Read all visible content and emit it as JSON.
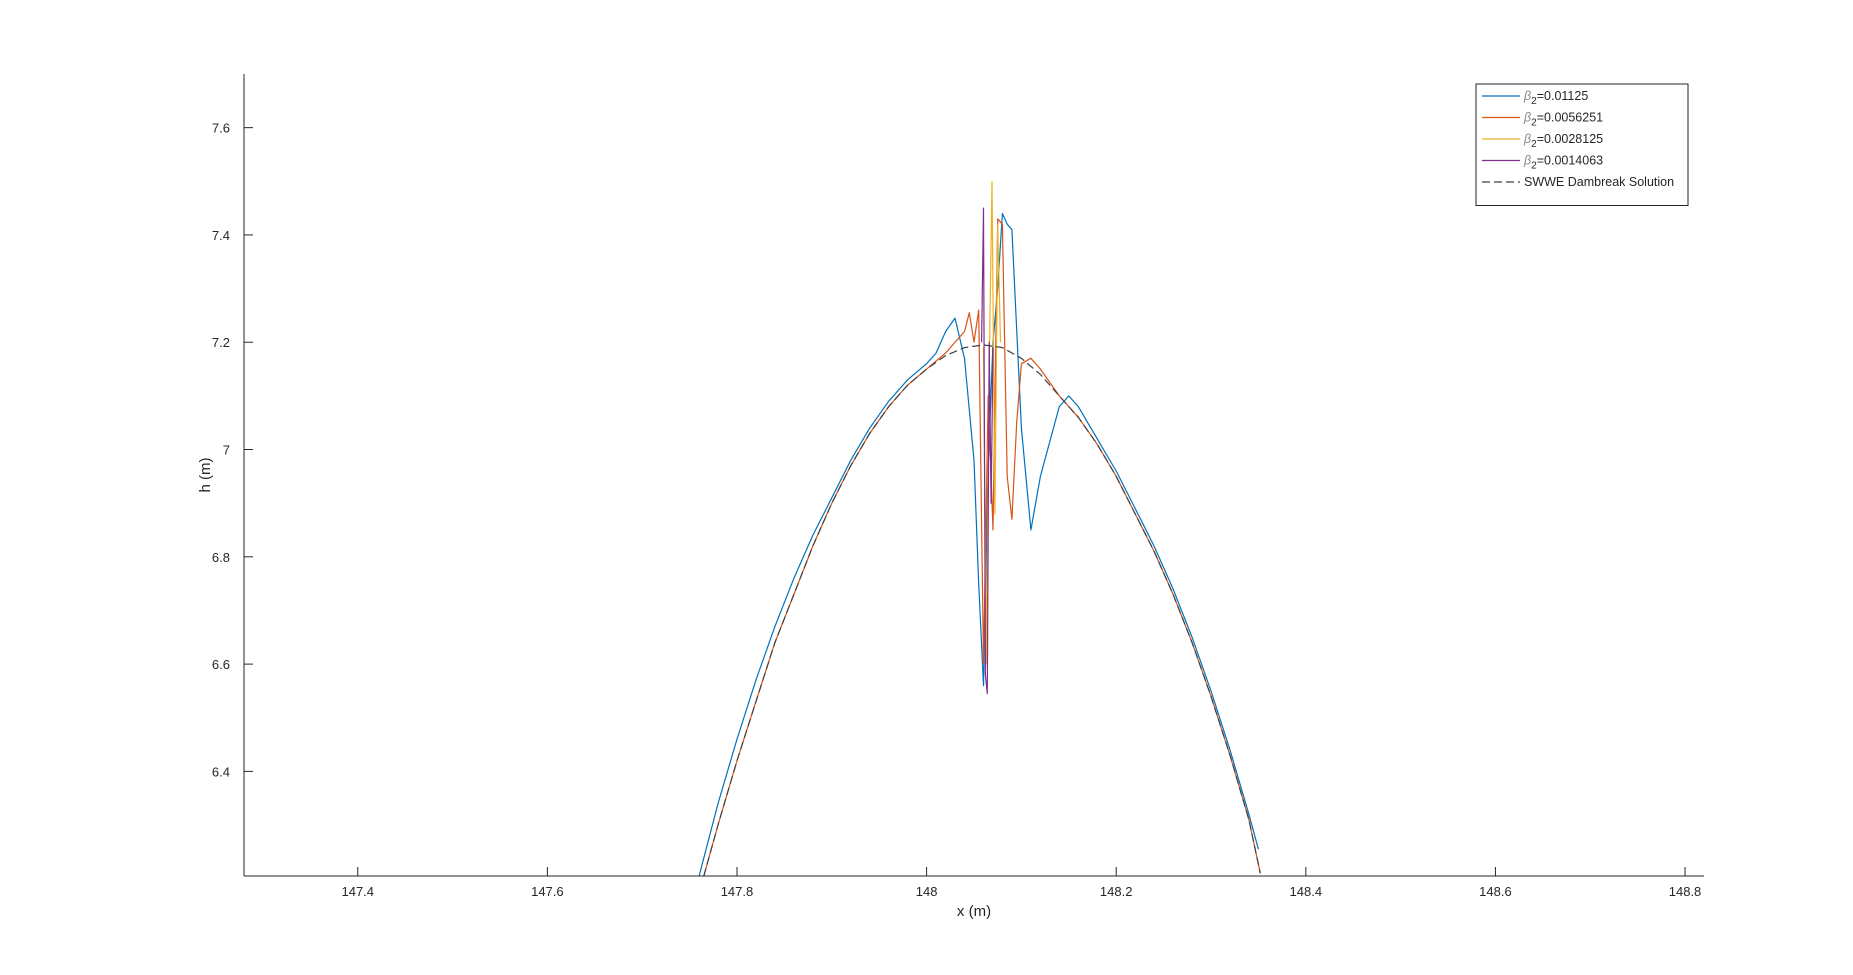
{
  "chart_data": {
    "type": "line",
    "title": "",
    "xlabel": "x (m)",
    "ylabel": "h (m)",
    "xlim": [
      147.28,
      148.82
    ],
    "ylim": [
      6.205,
      7.7
    ],
    "xticks": [
      147.4,
      147.6,
      147.8,
      148,
      148.2,
      148.4,
      148.6,
      148.8
    ],
    "xtick_labels": [
      "147.4",
      "147.6",
      "147.8",
      "148",
      "148.2",
      "148.4",
      "148.6",
      "148.8"
    ],
    "yticks": [
      6.4,
      6.6,
      6.8,
      7,
      7.2,
      7.4,
      7.6
    ],
    "ytick_labels": [
      "6.4",
      "6.6",
      "6.8",
      "7",
      "7.2",
      "7.4",
      "7.6"
    ],
    "grid": false,
    "legend_position": "top-right",
    "series": [
      {
        "name": "β₂=0.01125",
        "legend_symbol": "β",
        "legend_subscript": "2",
        "legend_value": "=0.01125",
        "color": "#0072BD",
        "dash": "solid",
        "x": [
          147.76,
          147.78,
          147.8,
          147.82,
          147.84,
          147.86,
          147.88,
          147.9,
          147.92,
          147.94,
          147.96,
          147.98,
          148.0,
          148.01,
          148.02,
          148.03,
          148.04,
          148.05,
          148.055,
          148.06,
          148.065,
          148.07,
          148.075,
          148.08,
          148.085,
          148.09,
          148.1,
          148.11,
          148.12,
          148.14,
          148.15,
          148.16,
          148.18,
          148.2,
          148.22,
          148.24,
          148.26,
          148.28,
          148.3,
          148.32,
          148.34,
          148.35
        ],
        "y": [
          6.205,
          6.34,
          6.46,
          6.57,
          6.67,
          6.76,
          6.84,
          6.91,
          6.98,
          7.04,
          7.09,
          7.13,
          7.16,
          7.18,
          7.22,
          7.245,
          7.17,
          6.98,
          6.75,
          6.56,
          6.97,
          7.2,
          7.3,
          7.44,
          7.42,
          7.41,
          7.04,
          6.85,
          6.95,
          7.08,
          7.1,
          7.08,
          7.02,
          6.96,
          6.89,
          6.82,
          6.74,
          6.65,
          6.55,
          6.44,
          6.32,
          6.255
        ]
      },
      {
        "name": "β₂=0.0056251",
        "legend_symbol": "β",
        "legend_subscript": "2",
        "legend_value": "=0.0056251",
        "color": "#D95319",
        "dash": "solid",
        "x": [
          147.765,
          147.78,
          147.8,
          147.82,
          147.84,
          147.86,
          147.88,
          147.9,
          147.92,
          147.94,
          147.96,
          147.98,
          148.0,
          148.02,
          148.04,
          148.045,
          148.05,
          148.055,
          148.06,
          148.065,
          148.07,
          148.075,
          148.08,
          148.085,
          148.09,
          148.095,
          148.1,
          148.11,
          148.12,
          148.14,
          148.16,
          148.18,
          148.2,
          148.22,
          148.24,
          148.26,
          148.28,
          148.3,
          148.32,
          148.34,
          148.352
        ],
        "y": [
          6.205,
          6.3,
          6.42,
          6.53,
          6.64,
          6.73,
          6.82,
          6.9,
          6.97,
          7.03,
          7.08,
          7.12,
          7.15,
          7.18,
          7.22,
          7.255,
          7.2,
          7.26,
          6.6,
          7.1,
          6.85,
          7.43,
          7.42,
          6.95,
          6.87,
          7.05,
          7.16,
          7.17,
          7.15,
          7.1,
          7.06,
          7.01,
          6.95,
          6.88,
          6.81,
          6.73,
          6.64,
          6.54,
          6.43,
          6.31,
          6.21
        ]
      },
      {
        "name": "β₂=0.0028125",
        "legend_symbol": "β",
        "legend_subscript": "2",
        "legend_value": "=0.0028125",
        "color": "#EDB120",
        "dash": "solid",
        "x": [
          148.06,
          148.063,
          148.066,
          148.069,
          148.072,
          148.075,
          148.078
        ],
        "y": [
          7.19,
          6.6,
          7.15,
          7.5,
          6.88,
          7.42,
          7.2
        ]
      },
      {
        "name": "β₂=0.0014063",
        "legend_symbol": "β",
        "legend_subscript": "2",
        "legend_value": "=0.0014063",
        "color": "#7E2F8E",
        "dash": "solid",
        "x": [
          148.058,
          148.06,
          148.062,
          148.064,
          148.066,
          148.068,
          148.07
        ],
        "y": [
          7.2,
          7.45,
          6.58,
          6.545,
          7.2,
          6.9,
          7.19
        ]
      },
      {
        "name": "SWWE Dambreak Solution",
        "legend_symbol": "",
        "legend_subscript": "",
        "legend_value": "SWWE Dambreak Solution",
        "color": "#404040",
        "dash": "dashed",
        "x": [
          147.765,
          147.78,
          147.8,
          147.82,
          147.84,
          147.86,
          147.88,
          147.9,
          147.92,
          147.94,
          147.96,
          147.98,
          148.0,
          148.02,
          148.04,
          148.06,
          148.08,
          148.1,
          148.12,
          148.14,
          148.16,
          148.18,
          148.2,
          148.22,
          148.24,
          148.26,
          148.28,
          148.3,
          148.32,
          148.34,
          148.352
        ],
        "y": [
          6.205,
          6.3,
          6.42,
          6.53,
          6.64,
          6.73,
          6.82,
          6.9,
          6.97,
          7.03,
          7.08,
          7.12,
          7.15,
          7.175,
          7.19,
          7.195,
          7.19,
          7.17,
          7.14,
          7.1,
          7.06,
          7.01,
          6.95,
          6.88,
          6.81,
          6.73,
          6.64,
          6.54,
          6.43,
          6.31,
          6.21
        ]
      }
    ]
  }
}
